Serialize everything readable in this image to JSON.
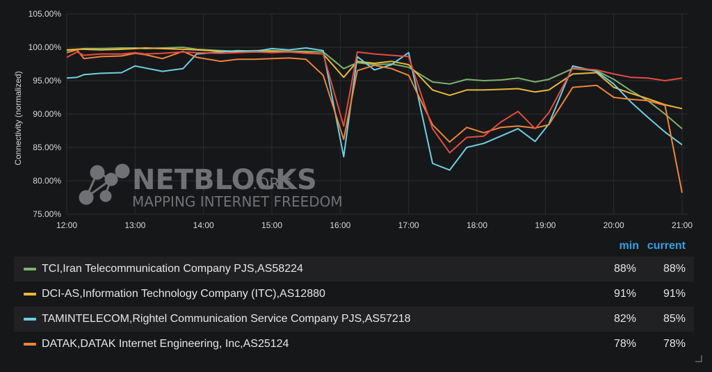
{
  "chart_data": {
    "type": "line",
    "ylabel": "Connectivity (normalized)",
    "xlabel": "",
    "ylim": [
      75,
      105
    ],
    "xlim": [
      12,
      21.05
    ],
    "y_ticks": [
      "75.00%",
      "80.00%",
      "85.00%",
      "90.00%",
      "95.00%",
      "100.00%",
      "105.00%"
    ],
    "x_ticks": [
      "12:00",
      "13:00",
      "14:00",
      "15:00",
      "16:00",
      "17:00",
      "18:00",
      "19:00",
      "20:00",
      "21:00"
    ],
    "grid": true,
    "x": [
      12.0,
      12.15,
      12.25,
      12.5,
      12.8,
      13.0,
      13.15,
      13.4,
      13.7,
      13.9,
      14.25,
      14.5,
      14.75,
      15.0,
      15.25,
      15.5,
      15.75,
      16.05,
      16.25,
      16.5,
      16.75,
      17.0,
      17.35,
      17.6,
      17.85,
      18.1,
      18.35,
      18.6,
      18.85,
      19.05,
      19.4,
      19.75,
      20.0,
      20.25,
      20.5,
      20.75,
      21.0
    ],
    "series": [
      {
        "name": "TCI,Iran Telecommunication Company PJS,AS58224",
        "color": "#7eb26d",
        "values": [
          99.5,
          99.7,
          99.8,
          99.8,
          99.9,
          99.9,
          99.8,
          99.9,
          100.0,
          99.7,
          99.5,
          99.4,
          99.5,
          99.5,
          99.4,
          99.4,
          99.3,
          96.8,
          97.7,
          97.4,
          97.5,
          97.0,
          94.8,
          94.5,
          95.2,
          95.0,
          95.1,
          95.4,
          94.8,
          95.2,
          96.8,
          96.5,
          95.2,
          93.5,
          92.0,
          90.0,
          87.8
        ]
      },
      {
        "name": "DCI-AS,Information Technology Company (ITC),AS12880",
        "color": "#eab839",
        "values": [
          99.6,
          99.7,
          99.7,
          99.6,
          99.7,
          99.8,
          99.9,
          99.8,
          99.7,
          99.6,
          99.4,
          99.3,
          99.3,
          99.4,
          99.3,
          99.2,
          99.0,
          95.5,
          97.9,
          97.6,
          97.9,
          97.4,
          93.6,
          92.8,
          93.6,
          93.6,
          93.7,
          93.8,
          93.3,
          93.6,
          96.0,
          96.2,
          94.0,
          93.1,
          92.3,
          91.4,
          90.8
        ]
      },
      {
        "name": "TAMINTELECOM,Rightel Communication Service Company PJS,AS57218",
        "color": "#6ed0e0",
        "values": [
          95.4,
          95.5,
          95.9,
          96.1,
          96.2,
          97.2,
          96.9,
          96.4,
          96.8,
          99.0,
          99.3,
          99.5,
          99.4,
          99.8,
          99.6,
          99.9,
          99.5,
          83.6,
          98.6,
          96.6,
          97.4,
          99.2,
          82.6,
          81.6,
          85.0,
          85.6,
          86.7,
          87.8,
          85.9,
          88.5,
          97.2,
          96.4,
          94.5,
          91.8,
          89.5,
          87.3,
          85.4
        ]
      },
      {
        "name": "DATAK,DATAK Internet Engineering, Inc,AS25124",
        "color": "#ef843c",
        "values": [
          99.2,
          99.6,
          98.3,
          98.6,
          98.7,
          99.1,
          98.9,
          98.3,
          99.4,
          98.5,
          97.9,
          98.2,
          98.2,
          98.3,
          98.4,
          98.2,
          95.8,
          86.2,
          96.5,
          97.3,
          96.8,
          95.8,
          88.4,
          85.8,
          88.0,
          87.2,
          88.0,
          88.2,
          87.9,
          88.4,
          94.0,
          94.3,
          92.5,
          92.2,
          92.0,
          91.3,
          78.2
        ]
      },
      {
        "name": "",
        "color": "#e24d42",
        "values": [
          98.5,
          99.3,
          98.8,
          99.0,
          99.0,
          99.2,
          99.0,
          99.1,
          99.3,
          99.2,
          99.1,
          99.2,
          99.3,
          99.2,
          99.3,
          99.1,
          99.0,
          88.2,
          99.3,
          99.0,
          98.8,
          98.6,
          87.8,
          84.2,
          86.5,
          86.7,
          88.8,
          90.4,
          87.8,
          90.2,
          96.9,
          96.6,
          96.0,
          95.5,
          95.4,
          95.0,
          95.4
        ]
      }
    ]
  },
  "legend": {
    "col_min": "min",
    "col_current": "current",
    "rows": [
      {
        "name": "TCI,Iran Telecommunication Company PJS,AS58224",
        "color": "#7eb26d",
        "min": "88%",
        "current": "88%"
      },
      {
        "name": "DCI-AS,Information Technology Company (ITC),AS12880",
        "color": "#eab839",
        "min": "91%",
        "current": "91%"
      },
      {
        "name": "TAMINTELECOM,Rightel Communication Service Company PJS,AS57218",
        "color": "#6ed0e0",
        "min": "82%",
        "current": "85%"
      },
      {
        "name": "DATAK,DATAK Internet Engineering, Inc,AS25124",
        "color": "#ef843c",
        "min": "78%",
        "current": "78%"
      }
    ]
  },
  "watermark": {
    "brand": "NETBLOCKS",
    "suffix": ".ORG",
    "tagline": "MAPPING INTERNET FREEDOM",
    "icon": "network-nodes-icon"
  }
}
